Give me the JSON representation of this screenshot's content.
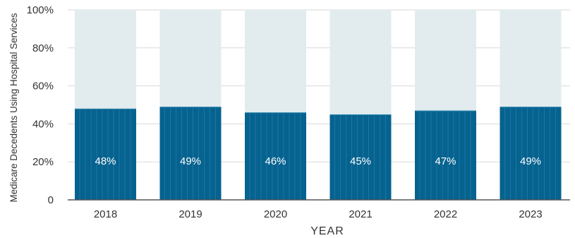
{
  "chart_data": {
    "type": "bar",
    "categories": [
      "2018",
      "2019",
      "2020",
      "2021",
      "2022",
      "2023"
    ],
    "values": [
      48,
      49,
      46,
      45,
      47,
      49
    ],
    "data_labels": [
      "48%",
      "49%",
      "46%",
      "45%",
      "47%",
      "49%"
    ],
    "title": "",
    "xlabel": "YEAR",
    "ylabel": "Medicare Decedents Using Hospital Services",
    "ylim": [
      0,
      100
    ],
    "y_ticks": [
      0,
      20,
      40,
      60,
      80,
      100
    ],
    "y_tick_labels": [
      "0",
      "20%",
      "40%",
      "60%",
      "80%",
      "100%"
    ],
    "grid": true,
    "stacked_to_100": true,
    "colors": {
      "bar": "#06628f",
      "bar_stripe": "#2f86b0",
      "remainder": "#e2ecee",
      "grid": "#d9d9d9",
      "axis": "#555555",
      "bar_label": "#ffffff"
    }
  }
}
